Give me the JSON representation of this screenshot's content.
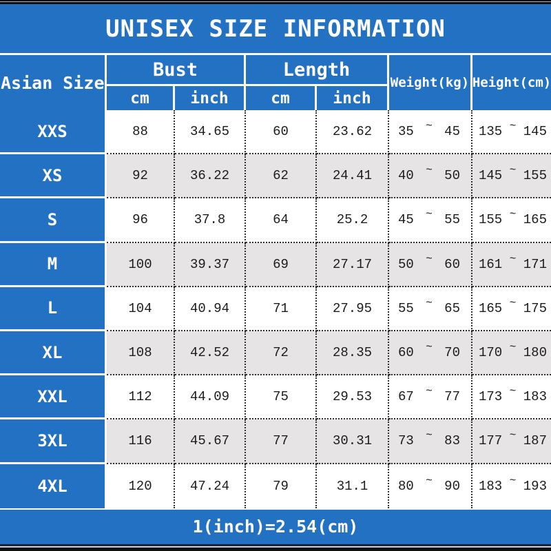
{
  "colors": {
    "accent_blue": "#2371c3",
    "alt_row_gray": "#e6e4e5",
    "dotted_border": "#2f2f2f",
    "frame_bar_dark": "#10101a",
    "header_text": "#ffffff",
    "data_text": "#1c1c1c"
  },
  "chart_data": {
    "type": "table",
    "title": "UNISEX SIZE INFORMATION",
    "corner_header": "Asian Size",
    "column_groups": [
      {
        "label": "Bust",
        "subs": [
          "cm",
          "inch"
        ]
      },
      {
        "label": "Length",
        "subs": [
          "cm",
          "inch"
        ]
      }
    ],
    "merged_columns": [
      "Weight(kg)",
      "Height(cm)"
    ],
    "range_separator": "~",
    "rows": [
      {
        "size": "XXS",
        "bust_cm": "88",
        "bust_inch": "34.65",
        "length_cm": "60",
        "length_inch": "23.62",
        "weight_min": "35",
        "weight_max": "45",
        "height_min": "135",
        "height_max": "145"
      },
      {
        "size": "XS",
        "bust_cm": "92",
        "bust_inch": "36.22",
        "length_cm": "62",
        "length_inch": "24.41",
        "weight_min": "40",
        "weight_max": "50",
        "height_min": "145",
        "height_max": "155"
      },
      {
        "size": "S",
        "bust_cm": "96",
        "bust_inch": "37.8",
        "length_cm": "64",
        "length_inch": "25.2",
        "weight_min": "45",
        "weight_max": "55",
        "height_min": "155",
        "height_max": "165"
      },
      {
        "size": "M",
        "bust_cm": "100",
        "bust_inch": "39.37",
        "length_cm": "69",
        "length_inch": "27.17",
        "weight_min": "50",
        "weight_max": "60",
        "height_min": "161",
        "height_max": "171"
      },
      {
        "size": "L",
        "bust_cm": "104",
        "bust_inch": "40.94",
        "length_cm": "71",
        "length_inch": "27.95",
        "weight_min": "55",
        "weight_max": "65",
        "height_min": "165",
        "height_max": "175"
      },
      {
        "size": "XL",
        "bust_cm": "108",
        "bust_inch": "42.52",
        "length_cm": "72",
        "length_inch": "28.35",
        "weight_min": "60",
        "weight_max": "70",
        "height_min": "170",
        "height_max": "180"
      },
      {
        "size": "XXL",
        "bust_cm": "112",
        "bust_inch": "44.09",
        "length_cm": "75",
        "length_inch": "29.53",
        "weight_min": "67",
        "weight_max": "77",
        "height_min": "173",
        "height_max": "183"
      },
      {
        "size": "3XL",
        "bust_cm": "116",
        "bust_inch": "45.67",
        "length_cm": "77",
        "length_inch": "30.31",
        "weight_min": "73",
        "weight_max": "83",
        "height_min": "177",
        "height_max": "187"
      },
      {
        "size": "4XL",
        "bust_cm": "120",
        "bust_inch": "47.24",
        "length_cm": "79",
        "length_inch": "31.1",
        "weight_min": "80",
        "weight_max": "90",
        "height_min": "183",
        "height_max": "193"
      }
    ],
    "footer_note": "1(inch)=2.54(cm)"
  }
}
